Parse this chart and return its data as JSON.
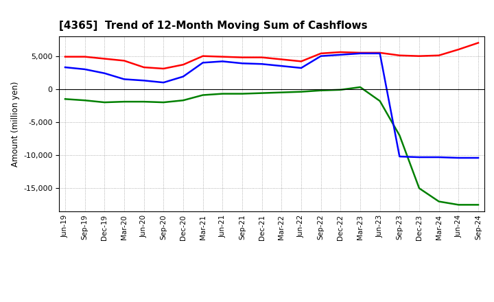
{
  "title": "[4365]  Trend of 12-Month Moving Sum of Cashflows",
  "ylabel": "Amount (million yen)",
  "x_labels": [
    "Jun-19",
    "Sep-19",
    "Dec-19",
    "Mar-20",
    "Jun-20",
    "Sep-20",
    "Dec-20",
    "Mar-21",
    "Jun-21",
    "Sep-21",
    "Dec-21",
    "Mar-22",
    "Jun-22",
    "Sep-22",
    "Dec-22",
    "Mar-23",
    "Jun-23",
    "Sep-23",
    "Dec-23",
    "Mar-24",
    "Jun-24",
    "Sep-24"
  ],
  "operating": [
    4900,
    4900,
    4600,
    4300,
    3300,
    3100,
    3700,
    5000,
    4900,
    4800,
    4800,
    4500,
    4200,
    5400,
    5600,
    5500,
    5500,
    5100,
    5000,
    5100,
    6000,
    7000
  ],
  "investing": [
    -1500,
    -1700,
    -2000,
    -1900,
    -1900,
    -2000,
    -1700,
    -900,
    -700,
    -700,
    -600,
    -500,
    -400,
    -200,
    -100,
    300,
    -1800,
    -7000,
    -15000,
    -17000,
    -17500,
    -17500
  ],
  "free": [
    3300,
    3000,
    2400,
    1500,
    1300,
    1000,
    1900,
    4000,
    4200,
    3900,
    3800,
    3500,
    3200,
    5000,
    5200,
    5400,
    5400,
    -10200,
    -10300,
    -10300,
    -10400,
    -10400
  ],
  "operating_color": "#FF0000",
  "investing_color": "#008000",
  "free_color": "#0000FF",
  "ylim": [
    -18500,
    8000
  ],
  "yticks": [
    -15000,
    -10000,
    -5000,
    0,
    5000
  ],
  "background_color": "#FFFFFF",
  "grid_color": "#999999"
}
